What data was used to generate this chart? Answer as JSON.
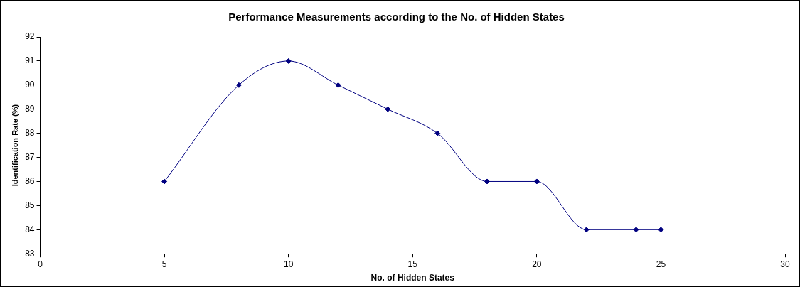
{
  "chart_data": {
    "type": "line",
    "title": "Performance Measurements according to the No. of Hidden States",
    "xlabel": "No. of Hidden States",
    "ylabel": "Identification Rate (%)",
    "x": [
      5,
      8,
      10,
      12,
      14,
      16,
      18,
      20,
      22,
      24,
      25
    ],
    "series": [
      {
        "color": "#000080",
        "values": [
          86,
          90,
          91,
          90,
          89,
          88,
          86,
          86,
          84,
          84,
          84
        ]
      }
    ],
    "xlim": [
      0,
      30
    ],
    "xticks": [
      0,
      5,
      10,
      15,
      20,
      25,
      30
    ],
    "ylim": [
      83,
      92
    ],
    "yticks": [
      83,
      84,
      85,
      86,
      87,
      88,
      89,
      90,
      91,
      92
    ],
    "grid": false,
    "legend": false,
    "marker": "diamond",
    "line_style": "solid"
  }
}
